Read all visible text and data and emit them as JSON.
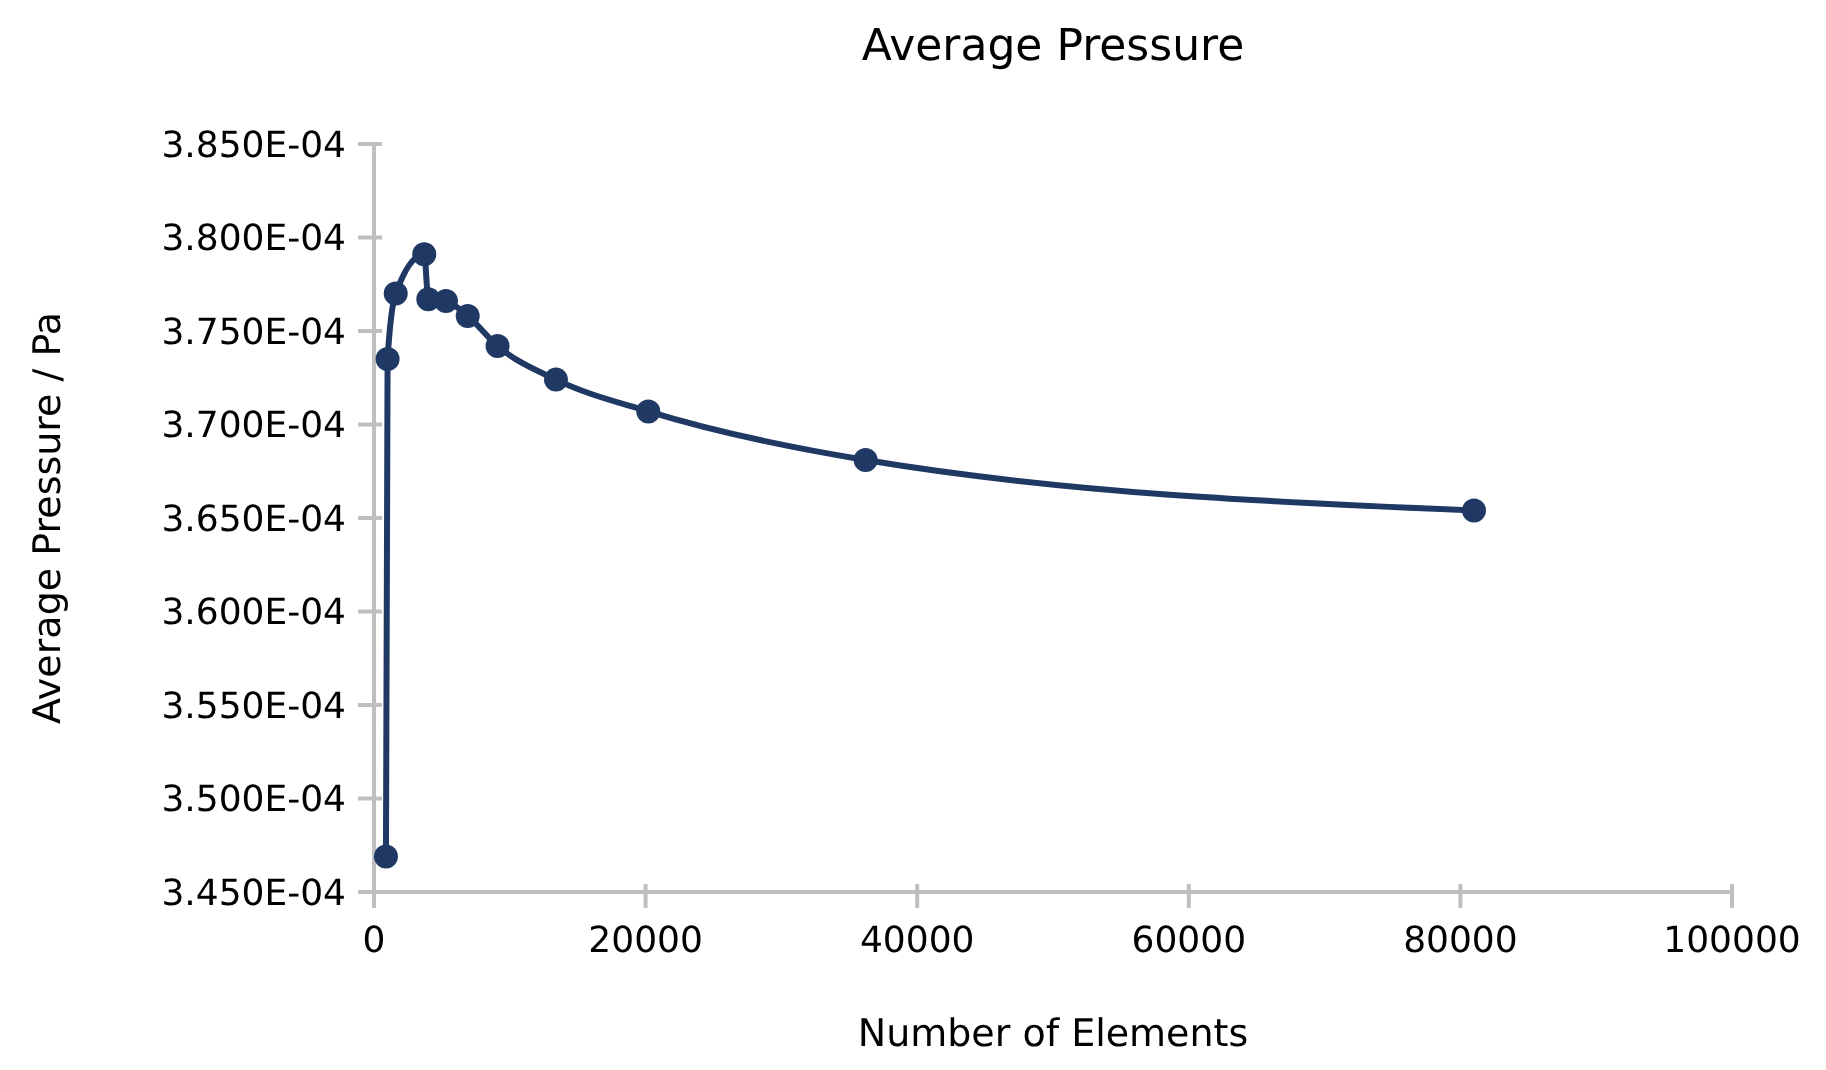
{
  "chart_data": {
    "type": "line",
    "title": "Average Pressure",
    "xlabel": "Number of Elements",
    "ylabel": "Average Pressure / Pa",
    "x": [
      880,
      1000,
      1600,
      3700,
      4000,
      5300,
      6900,
      9100,
      13400,
      20200,
      36200,
      81000
    ],
    "series": [
      {
        "color": "#1f3864",
        "values": [
          0.0003469,
          0.0003735,
          0.000377,
          0.0003791,
          0.0003767,
          0.0003766,
          0.0003758,
          0.0003742,
          0.0003724,
          0.0003707,
          0.0003681,
          0.0003654
        ]
      }
    ],
    "xlim": [
      0,
      100000
    ],
    "xticks": [
      0,
      20000,
      40000,
      60000,
      80000,
      100000
    ],
    "ylim": [
      0.000345,
      0.000385
    ],
    "yticks": [
      {
        "value": 0.000345,
        "label": "3.450E-04"
      },
      {
        "value": 0.00035,
        "label": "3.500E-04"
      },
      {
        "value": 0.000355,
        "label": "3.550E-04"
      },
      {
        "value": 0.00036,
        "label": "3.600E-04"
      },
      {
        "value": 0.000365,
        "label": "3.650E-04"
      },
      {
        "value": 0.00037,
        "label": "3.700E-04"
      },
      {
        "value": 0.000375,
        "label": "3.750E-04"
      },
      {
        "value": 0.00038,
        "label": "3.800E-04"
      },
      {
        "value": 0.000385,
        "label": "3.850E-04"
      }
    ],
    "marker": "circle",
    "line_style": "solid",
    "grid": false
  }
}
